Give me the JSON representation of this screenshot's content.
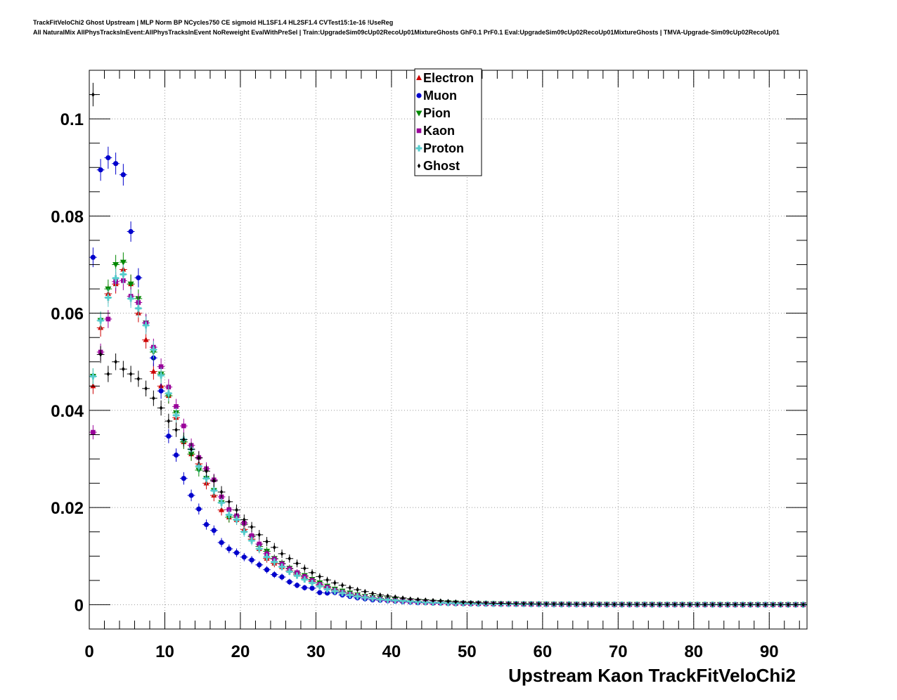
{
  "header": {
    "title_line1": "TrackFitVeloChi2 Ghost Upstream | MLP Norm BP NCycles750 CE sigmoid HL1SF1.4 HL2SF1.4 CVTest15:1e-16 !UseReg",
    "title_line2": "All NaturalMix AllPhysTracksInEvent:AllPhysTracksInEvent NoReweight EvalWithPreSel | Train:UpgradeSim09cUp02RecoUp01MixtureGhosts GhF0.1 PrF0.1 Eval:UpgradeSim09cUp02RecoUp01MixtureGhosts | TMVA-Upgrade-Sim09cUp02RecoUp01"
  },
  "chart_data": {
    "type": "scatter",
    "xlabel": "Upstream Kaon TrackFitVeloChi2",
    "ylabel": "",
    "xlim": [
      0,
      95
    ],
    "ylim": [
      -0.005,
      0.11
    ],
    "x_ticks": [
      "0",
      "10",
      "20",
      "30",
      "40",
      "50",
      "60",
      "70",
      "80",
      "90"
    ],
    "y_ticks": [
      "0",
      "0.02",
      "0.04",
      "0.06",
      "0.08",
      "0.1"
    ],
    "grid": true,
    "legend_position": "top-center",
    "bin_width": 1,
    "series": [
      {
        "name": "Electron",
        "marker": "triangle-up",
        "color": "#cc0000",
        "values": [
          0.045,
          0.057,
          0.064,
          0.066,
          0.069,
          0.066,
          0.06,
          0.0545,
          0.048,
          0.045,
          0.043,
          0.0385,
          0.0335,
          0.031,
          0.029,
          0.025,
          0.0225,
          0.0195,
          0.018,
          0.0175,
          0.0155,
          0.0135,
          0.0115,
          0.0095,
          0.0085,
          0.0078,
          0.007,
          0.0062,
          0.0055,
          0.0048,
          0.004,
          0.0034,
          0.0029,
          0.0025,
          0.0021,
          0.0018,
          0.0016,
          0.0014,
          0.0012,
          0.001,
          0.0009,
          0.0008,
          0.0007,
          0.0006,
          0.0005,
          0.00045,
          0.0004,
          0.00035,
          0.0003,
          0.00028,
          0.00025,
          0.00022,
          0.0002,
          0.00018,
          0.00016,
          0.00015,
          0.00014,
          0.00013,
          0.00012,
          0.00011,
          0.0001,
          9e-05,
          8e-05,
          8e-05,
          7e-05,
          7e-05,
          6e-05,
          6e-05,
          5e-05,
          5e-05,
          5e-05,
          4e-05,
          4e-05,
          4e-05,
          3e-05,
          3e-05,
          3e-05,
          3e-05,
          2e-05,
          2e-05,
          2e-05,
          2e-05,
          2e-05,
          1e-05,
          1e-05,
          1e-05,
          1e-05,
          1e-05,
          1e-05,
          1e-05,
          1e-05,
          1e-05,
          1e-05,
          1e-05,
          1e-05
        ]
      },
      {
        "name": "Muon",
        "marker": "circle",
        "color": "#0000cc",
        "values": [
          0.0715,
          0.0895,
          0.092,
          0.0908,
          0.0885,
          0.0768,
          0.0673,
          0.058,
          0.0508,
          0.044,
          0.0347,
          0.0308,
          0.026,
          0.0225,
          0.0197,
          0.0165,
          0.0153,
          0.0128,
          0.0115,
          0.0107,
          0.0098,
          0.0092,
          0.0082,
          0.0072,
          0.0062,
          0.0057,
          0.0047,
          0.004,
          0.0035,
          0.0034,
          0.0025,
          0.0024,
          0.0025,
          0.002,
          0.0017,
          0.0014,
          0.0012,
          0.001,
          0.0009,
          0.0008,
          0.0007,
          0.0006,
          0.0005,
          0.0004,
          0.0004,
          0.0003,
          0.0003,
          0.00025,
          0.0002,
          0.0002,
          0.00015,
          0.00015,
          0.0001,
          0.0001,
          0.0001,
          0.0001,
          8e-05,
          8e-05,
          6e-05,
          6e-05,
          5e-05,
          5e-05,
          4e-05,
          4e-05,
          4e-05,
          3e-05,
          3e-05,
          3e-05,
          3e-05,
          2e-05,
          2e-05,
          2e-05,
          2e-05,
          2e-05,
          1e-05,
          1e-05,
          1e-05,
          1e-05,
          1e-05,
          1e-05,
          1e-05,
          1e-05,
          1e-05,
          1e-05,
          1e-05,
          1e-05,
          1e-05,
          1e-05,
          1e-05,
          1e-05,
          1e-05,
          1e-05,
          1e-05,
          1e-05,
          1e-05
        ]
      },
      {
        "name": "Pion",
        "marker": "triangle-down",
        "color": "#008800",
        "values": [
          0.047,
          0.0585,
          0.065,
          0.07,
          0.0705,
          0.066,
          0.063,
          0.058,
          0.052,
          0.0475,
          0.043,
          0.0395,
          0.0335,
          0.031,
          0.0277,
          0.026,
          0.0235,
          0.021,
          0.018,
          0.018,
          0.0165,
          0.014,
          0.012,
          0.011,
          0.0095,
          0.0085,
          0.0075,
          0.0065,
          0.006,
          0.0052,
          0.0045,
          0.0038,
          0.0032,
          0.0028,
          0.0024,
          0.002,
          0.0017,
          0.0015,
          0.0013,
          0.0011,
          0.001,
          0.0009,
          0.0008,
          0.0007,
          0.0006,
          0.0005,
          0.00045,
          0.0004,
          0.00035,
          0.0003,
          0.00028,
          0.00025,
          0.00022,
          0.0002,
          0.00018,
          0.00016,
          0.00015,
          0.00014,
          0.00013,
          0.00012,
          0.00011,
          0.0001,
          9e-05,
          8e-05,
          8e-05,
          7e-05,
          7e-05,
          6e-05,
          6e-05,
          5e-05,
          5e-05,
          5e-05,
          4e-05,
          4e-05,
          4e-05,
          3e-05,
          3e-05,
          3e-05,
          3e-05,
          2e-05,
          2e-05,
          2e-05,
          2e-05,
          2e-05,
          1e-05,
          1e-05,
          1e-05,
          1e-05,
          1e-05,
          1e-05,
          1e-05,
          1e-05,
          1e-05,
          1e-05,
          1e-05
        ]
      },
      {
        "name": "Kaon",
        "marker": "square",
        "color": "#990099",
        "values": [
          0.0355,
          0.052,
          0.0588,
          0.0665,
          0.0667,
          0.0635,
          0.0622,
          0.058,
          0.053,
          0.049,
          0.0448,
          0.0408,
          0.0368,
          0.0328,
          0.0303,
          0.028,
          0.0257,
          0.0222,
          0.0196,
          0.0183,
          0.0168,
          0.0142,
          0.0125,
          0.0105,
          0.0094,
          0.0084,
          0.0074,
          0.0066,
          0.0058,
          0.005,
          0.0042,
          0.0036,
          0.003,
          0.0026,
          0.0022,
          0.0019,
          0.0016,
          0.0014,
          0.0012,
          0.001,
          0.0009,
          0.0008,
          0.0007,
          0.0006,
          0.0005,
          0.00045,
          0.0004,
          0.00035,
          0.0003,
          0.00028,
          0.00025,
          0.00022,
          0.0002,
          0.00018,
          0.00016,
          0.00015,
          0.00014,
          0.00013,
          0.00012,
          0.00011,
          0.0001,
          9e-05,
          8e-05,
          8e-05,
          7e-05,
          7e-05,
          6e-05,
          6e-05,
          5e-05,
          5e-05,
          5e-05,
          4e-05,
          4e-05,
          4e-05,
          3e-05,
          3e-05,
          3e-05,
          3e-05,
          2e-05,
          2e-05,
          2e-05,
          2e-05,
          2e-05,
          1e-05,
          1e-05,
          1e-05,
          1e-05,
          1e-05,
          1e-05,
          1e-05,
          1e-05,
          1e-05,
          1e-05,
          1e-05,
          1e-05
        ]
      },
      {
        "name": "Proton",
        "marker": "cross",
        "color": "#55cccc",
        "values": [
          0.047,
          0.0585,
          0.0632,
          0.0672,
          0.068,
          0.063,
          0.061,
          0.0575,
          0.0525,
          0.0472,
          0.0435,
          0.039,
          0.034,
          0.032,
          0.0285,
          0.026,
          0.0235,
          0.021,
          0.0185,
          0.0175,
          0.015,
          0.0132,
          0.0115,
          0.0098,
          0.0088,
          0.0078,
          0.0068,
          0.006,
          0.0052,
          0.0045,
          0.0038,
          0.0032,
          0.0028,
          0.0024,
          0.002,
          0.0017,
          0.0015,
          0.0013,
          0.0011,
          0.001,
          0.0009,
          0.0008,
          0.0007,
          0.0006,
          0.0005,
          0.00045,
          0.0004,
          0.00035,
          0.0003,
          0.00028,
          0.00025,
          0.00022,
          0.0002,
          0.00018,
          0.00016,
          0.00015,
          0.00014,
          0.00013,
          0.00012,
          0.00011,
          0.0001,
          9e-05,
          8e-05,
          8e-05,
          7e-05,
          7e-05,
          6e-05,
          6e-05,
          5e-05,
          5e-05,
          5e-05,
          4e-05,
          4e-05,
          4e-05,
          3e-05,
          3e-05,
          3e-05,
          3e-05,
          2e-05,
          2e-05,
          2e-05,
          2e-05,
          2e-05,
          1e-05,
          1e-05,
          1e-05,
          1e-05,
          1e-05,
          1e-05,
          1e-05,
          1e-05,
          1e-05,
          1e-05,
          1e-05,
          1e-05
        ]
      },
      {
        "name": "Ghost",
        "marker": "diamond",
        "color": "#000000",
        "values": [
          0.105,
          0.0515,
          0.0475,
          0.05,
          0.0485,
          0.0475,
          0.0465,
          0.0445,
          0.0425,
          0.0405,
          0.0378,
          0.036,
          0.034,
          0.032,
          0.0302,
          0.0275,
          0.0255,
          0.0232,
          0.0212,
          0.0195,
          0.0175,
          0.016,
          0.0144,
          0.013,
          0.0118,
          0.0105,
          0.0095,
          0.0085,
          0.0075,
          0.0066,
          0.0058,
          0.0051,
          0.0045,
          0.004,
          0.0035,
          0.0031,
          0.0027,
          0.0023,
          0.002,
          0.0018,
          0.0016,
          0.0014,
          0.0012,
          0.0011,
          0.001,
          0.0009,
          0.0008,
          0.0007,
          0.0006,
          0.0005,
          0.00045,
          0.0004,
          0.00035,
          0.0003,
          0.00028,
          0.00025,
          0.00022,
          0.0002,
          0.00018,
          0.00016,
          0.00015,
          0.00014,
          0.00013,
          0.00012,
          0.00011,
          0.0001,
          9e-05,
          8e-05,
          8e-05,
          7e-05,
          7e-05,
          6e-05,
          6e-05,
          5e-05,
          5e-05,
          5e-05,
          4e-05,
          4e-05,
          4e-05,
          3e-05,
          3e-05,
          3e-05,
          3e-05,
          2e-05,
          2e-05,
          2e-05,
          2e-05,
          2e-05,
          1e-05,
          1e-05,
          1e-05,
          1e-05,
          1e-05,
          1e-05,
          1e-05
        ]
      }
    ]
  }
}
